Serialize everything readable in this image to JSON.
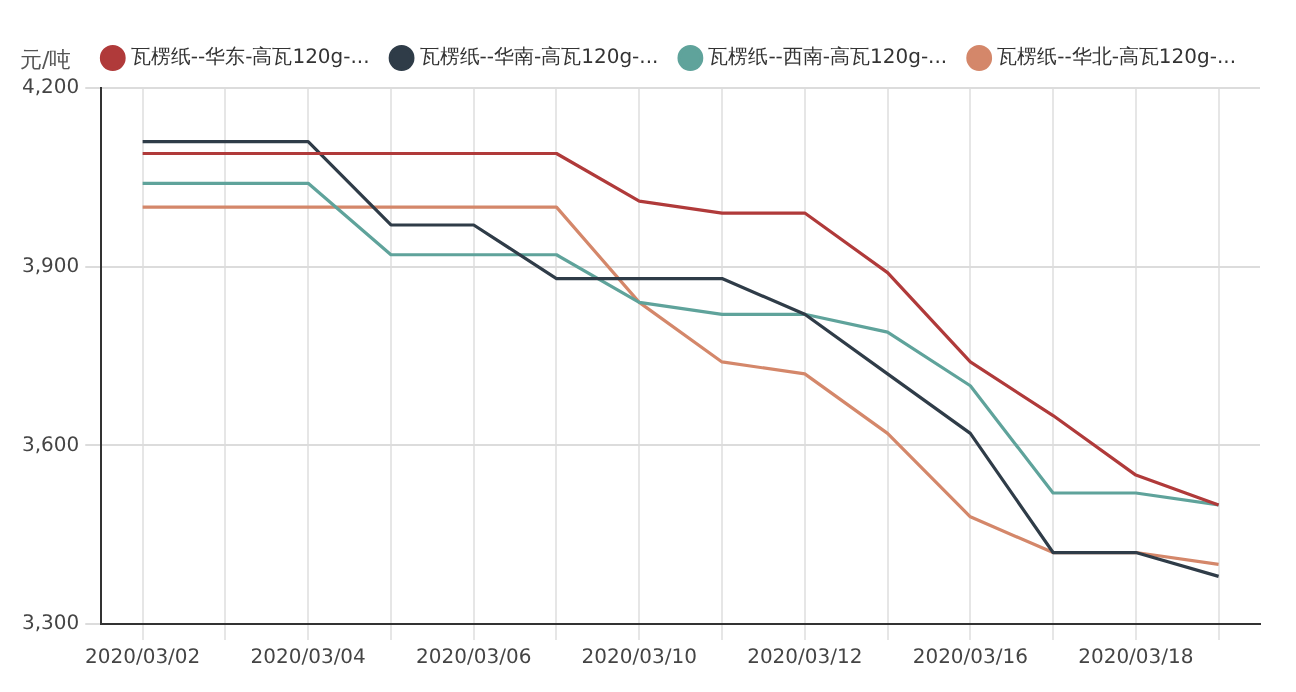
{
  "chart_data": {
    "type": "line",
    "ylabel": "元/吨",
    "categories": [
      "2020/03/02",
      null,
      "2020/03/04",
      null,
      "2020/03/06",
      null,
      "2020/03/10",
      null,
      "2020/03/12",
      null,
      "2020/03/16",
      null,
      "2020/03/18",
      null
    ],
    "series": [
      {
        "name": "瓦楞纸--华东-高瓦120g-...",
        "color": "#b03a3a",
        "values": [
          4090,
          4090,
          4090,
          4090,
          4090,
          4090,
          4010,
          3990,
          3990,
          3890,
          3740,
          3650,
          3550,
          3500
        ]
      },
      {
        "name": "瓦楞纸--华南-高瓦120g-...",
        "color": "#2f3c48",
        "values": [
          4110,
          4110,
          4110,
          3970,
          3970,
          3880,
          3880,
          3880,
          3820,
          3720,
          3620,
          3420,
          3420,
          3380
        ]
      },
      {
        "name": "瓦楞纸--西南-高瓦120g-...",
        "color": "#5fa39b",
        "values": [
          4040,
          4040,
          4040,
          3920,
          3920,
          3920,
          3840,
          3820,
          3820,
          3790,
          3700,
          3520,
          3520,
          3500
        ]
      },
      {
        "name": "瓦楞纸--华北-高瓦120g-...",
        "color": "#d4876a",
        "values": [
          4000,
          4000,
          4000,
          4000,
          4000,
          4000,
          3840,
          3740,
          3720,
          3620,
          3480,
          3420,
          3420,
          3400
        ]
      }
    ],
    "ylim": [
      3300,
      4200
    ],
    "yticks": [
      {
        "value": 3300,
        "label": "3,300"
      },
      {
        "value": 3600,
        "label": "3,600"
      },
      {
        "value": 3900,
        "label": "3,900"
      },
      {
        "value": 4200,
        "label": "4,200"
      }
    ],
    "grid": true,
    "legend": "top",
    "marker": "none",
    "line_style": "solid"
  }
}
